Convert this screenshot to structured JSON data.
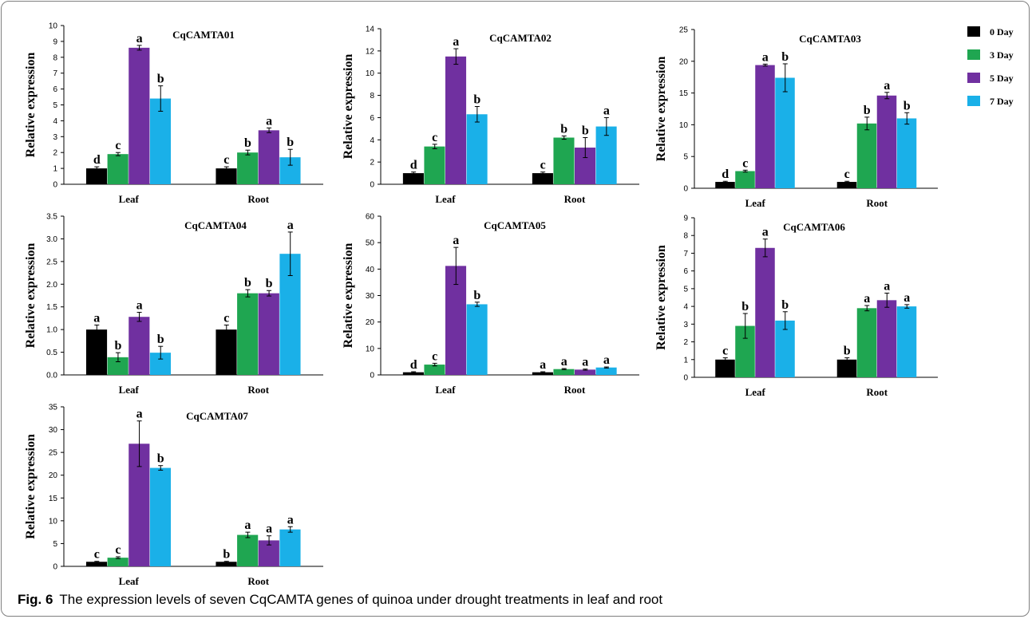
{
  "caption": {
    "label": "Fig. 6",
    "text": "The expression levels of seven CqCAMTA genes of quinoa under drought treatments in leaf and root"
  },
  "colors": [
    "#000000",
    "#1fa651",
    "#7030a0",
    "#1ab0e8"
  ],
  "legend": {
    "placement": "top-right",
    "entries": [
      "0 Day",
      "3 Day",
      "5 Day",
      "7 Day"
    ]
  },
  "chart_data": [
    {
      "type": "bar",
      "title": "CqCAMTA01",
      "ylabel": "Relative expression",
      "categories": [
        "Leaf",
        "Root"
      ],
      "ylim": [
        0,
        10
      ],
      "yticks": [
        "0",
        "1",
        "2",
        "3",
        "4",
        "5",
        "6",
        "7",
        "8",
        "9",
        "10"
      ],
      "series": [
        {
          "name": "0 Day",
          "values": [
            1.0,
            1.0
          ],
          "errors": [
            0.1,
            0.1
          ],
          "letters": [
            "d",
            "c"
          ]
        },
        {
          "name": "3 Day",
          "values": [
            1.9,
            2.0
          ],
          "errors": [
            0.1,
            0.15
          ],
          "letters": [
            "c",
            "b"
          ]
        },
        {
          "name": "5 Day",
          "values": [
            8.6,
            3.4
          ],
          "errors": [
            0.15,
            0.15
          ],
          "letters": [
            "a",
            "a"
          ]
        },
        {
          "name": "7 Day",
          "values": [
            5.4,
            1.7
          ],
          "errors": [
            0.8,
            0.5
          ],
          "letters": [
            "b",
            "b"
          ]
        }
      ]
    },
    {
      "type": "bar",
      "title": "CqCAMTA02",
      "ylabel": "Relative expression",
      "categories": [
        "Leaf",
        "Root"
      ],
      "ylim": [
        0,
        14
      ],
      "yticks": [
        "0",
        "2",
        "4",
        "6",
        "8",
        "10",
        "12",
        "14"
      ],
      "series": [
        {
          "name": "0 Day",
          "values": [
            1.0,
            1.0
          ],
          "errors": [
            0.1,
            0.1
          ],
          "letters": [
            "d",
            "c"
          ]
        },
        {
          "name": "3 Day",
          "values": [
            3.4,
            4.2
          ],
          "errors": [
            0.2,
            0.15
          ],
          "letters": [
            "c",
            "b"
          ]
        },
        {
          "name": "5 Day",
          "values": [
            11.5,
            3.3
          ],
          "errors": [
            0.7,
            0.9
          ],
          "letters": [
            "a",
            "b"
          ]
        },
        {
          "name": "7 Day",
          "values": [
            6.3,
            5.2
          ],
          "errors": [
            0.7,
            0.8
          ],
          "letters": [
            "b",
            "a"
          ]
        }
      ]
    },
    {
      "type": "bar",
      "title": "CqCAMTA03",
      "ylabel": "Relative expression",
      "categories": [
        "Leaf",
        "Root"
      ],
      "ylim": [
        0,
        25
      ],
      "yticks": [
        "0",
        "5",
        "10",
        "15",
        "20",
        "25"
      ],
      "series": [
        {
          "name": "0 Day",
          "values": [
            1.0,
            1.0
          ],
          "errors": [
            0.1,
            0.1
          ],
          "letters": [
            "d",
            "c"
          ]
        },
        {
          "name": "3 Day",
          "values": [
            2.7,
            10.2
          ],
          "errors": [
            0.15,
            1.0
          ],
          "letters": [
            "c",
            "b"
          ]
        },
        {
          "name": "5 Day",
          "values": [
            19.4,
            14.6
          ],
          "errors": [
            0.15,
            0.5
          ],
          "letters": [
            "a",
            "a"
          ]
        },
        {
          "name": "7 Day",
          "values": [
            17.4,
            11.0
          ],
          "errors": [
            2.2,
            0.9
          ],
          "letters": [
            "b",
            "b"
          ]
        }
      ]
    },
    {
      "type": "bar",
      "title": "CqCAMTA04",
      "ylabel": "Relative expression",
      "categories": [
        "Leaf",
        "Root"
      ],
      "ylim": [
        0,
        3.5
      ],
      "yticks": [
        "0.0",
        "0.5",
        "1.0",
        "1.5",
        "2.0",
        "2.5",
        "3.0",
        "3.5"
      ],
      "series": [
        {
          "name": "0 Day",
          "values": [
            1.0,
            1.0
          ],
          "errors": [
            0.1,
            0.1
          ],
          "letters": [
            "a",
            "c"
          ]
        },
        {
          "name": "3 Day",
          "values": [
            0.39,
            1.8
          ],
          "errors": [
            0.1,
            0.08
          ],
          "letters": [
            "b",
            "b"
          ]
        },
        {
          "name": "5 Day",
          "values": [
            1.28,
            1.8
          ],
          "errors": [
            0.1,
            0.06
          ],
          "letters": [
            "a",
            "b"
          ]
        },
        {
          "name": "7 Day",
          "values": [
            0.49,
            2.67
          ],
          "errors": [
            0.14,
            0.48
          ],
          "letters": [
            "b",
            "a"
          ]
        }
      ]
    },
    {
      "type": "bar",
      "title": "CqCAMTA05",
      "ylabel": "Relative expression",
      "categories": [
        "Leaf",
        "Root"
      ],
      "ylim": [
        0,
        60
      ],
      "yticks": [
        "0",
        "10",
        "20",
        "30",
        "40",
        "50",
        "60"
      ],
      "series": [
        {
          "name": "0 Day",
          "values": [
            1.0,
            1.0
          ],
          "errors": [
            0.2,
            0.2
          ],
          "letters": [
            "d",
            "a"
          ]
        },
        {
          "name": "3 Day",
          "values": [
            3.9,
            2.2
          ],
          "errors": [
            0.5,
            0.2
          ],
          "letters": [
            "c",
            "a"
          ]
        },
        {
          "name": "5 Day",
          "values": [
            41.2,
            2.0
          ],
          "errors": [
            7.0,
            0.2
          ],
          "letters": [
            "a",
            "a"
          ]
        },
        {
          "name": "7 Day",
          "values": [
            26.7,
            2.8
          ],
          "errors": [
            0.8,
            0.2
          ],
          "letters": [
            "b",
            "a"
          ]
        }
      ]
    },
    {
      "type": "bar",
      "title": "CqCAMTA06",
      "ylabel": "Relative expression",
      "categories": [
        "Leaf",
        "Root"
      ],
      "ylim": [
        0,
        9
      ],
      "yticks": [
        "0",
        "1",
        "2",
        "3",
        "4",
        "5",
        "6",
        "7",
        "8",
        "9"
      ],
      "series": [
        {
          "name": "0 Day",
          "values": [
            1.0,
            1.0
          ],
          "errors": [
            0.1,
            0.1
          ],
          "letters": [
            "c",
            "b"
          ]
        },
        {
          "name": "3 Day",
          "values": [
            2.9,
            3.9
          ],
          "errors": [
            0.7,
            0.15
          ],
          "letters": [
            "b",
            "a"
          ]
        },
        {
          "name": "5 Day",
          "values": [
            7.3,
            4.35
          ],
          "errors": [
            0.5,
            0.4
          ],
          "letters": [
            "a",
            "a"
          ]
        },
        {
          "name": "7 Day",
          "values": [
            3.2,
            4.0
          ],
          "errors": [
            0.5,
            0.1
          ],
          "letters": [
            "b",
            "a"
          ]
        }
      ]
    },
    {
      "type": "bar",
      "title": "CqCAMTA07",
      "ylabel": "Relative expression",
      "categories": [
        "Leaf",
        "Root"
      ],
      "ylim": [
        0,
        35
      ],
      "yticks": [
        "0",
        "5",
        "10",
        "15",
        "20",
        "25",
        "30",
        "35"
      ],
      "series": [
        {
          "name": "0 Day",
          "values": [
            1.0,
            1.0
          ],
          "errors": [
            0.1,
            0.1
          ],
          "letters": [
            "c",
            "b"
          ]
        },
        {
          "name": "3 Day",
          "values": [
            1.9,
            6.9
          ],
          "errors": [
            0.2,
            0.6
          ],
          "letters": [
            "c",
            "a"
          ]
        },
        {
          "name": "5 Day",
          "values": [
            26.9,
            5.7
          ],
          "errors": [
            5.0,
            1.0
          ],
          "letters": [
            "a",
            "a"
          ]
        },
        {
          "name": "7 Day",
          "values": [
            21.6,
            8.1
          ],
          "errors": [
            0.5,
            0.6
          ],
          "letters": [
            "b",
            "a"
          ]
        }
      ]
    }
  ]
}
